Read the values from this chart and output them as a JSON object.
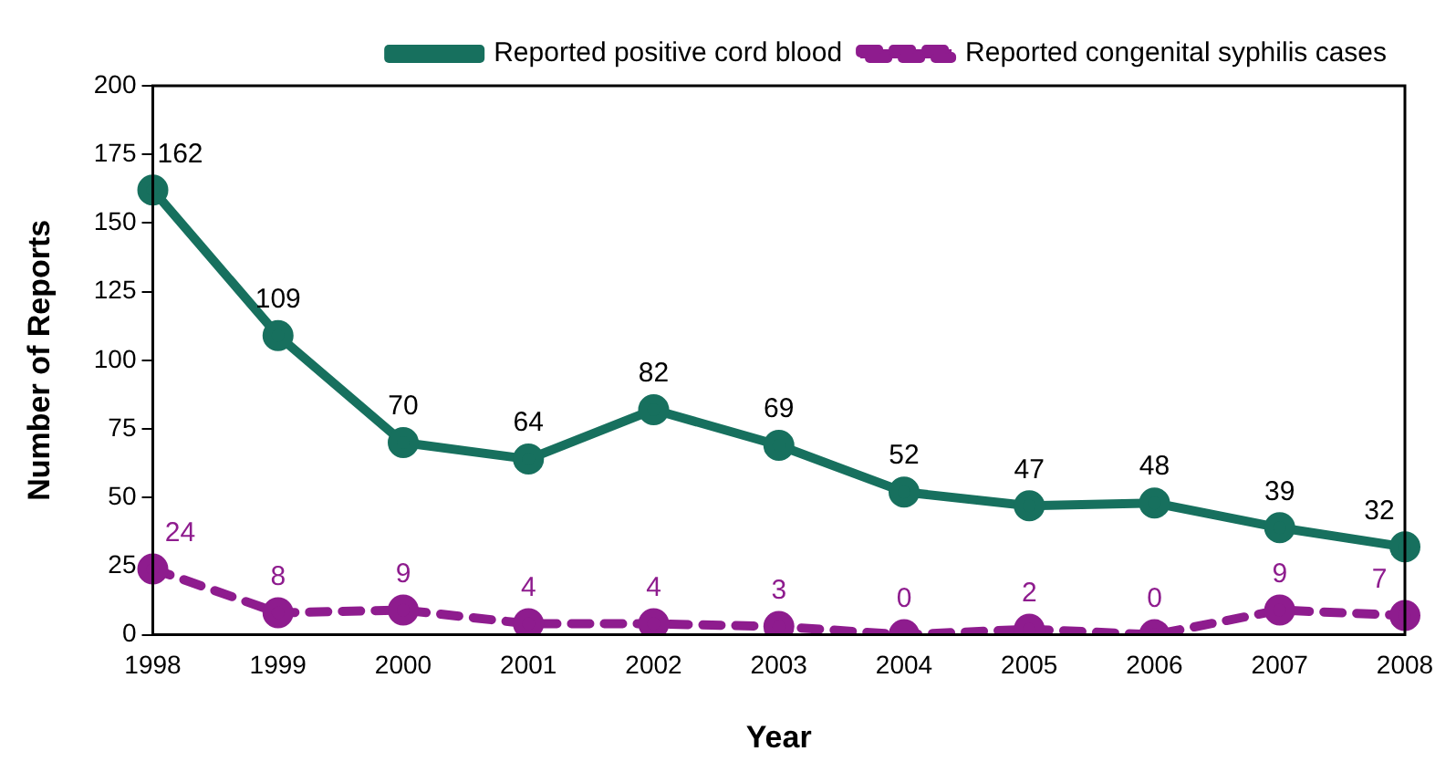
{
  "chart_data": {
    "type": "line",
    "xlabel": "Year",
    "ylabel": "Number of Reports",
    "categories": [
      "1998",
      "1999",
      "2000",
      "2001",
      "2002",
      "2003",
      "2004",
      "2005",
      "2006",
      "2007",
      "2008"
    ],
    "series": [
      {
        "name": "Reported positive cord blood",
        "color": "#17705e",
        "values": [
          162,
          109,
          70,
          64,
          82,
          69,
          52,
          47,
          48,
          39,
          32
        ],
        "line_style": "solid"
      },
      {
        "name": "Reported congenital syphilis cases",
        "color": "#8e1c8e",
        "values": [
          24,
          8,
          9,
          4,
          4,
          3,
          0,
          2,
          0,
          9,
          7
        ],
        "line_style": "dashed"
      }
    ],
    "ylim": [
      0,
      200
    ],
    "yticks": [
      0,
      25,
      50,
      75,
      100,
      125,
      150,
      175,
      200
    ],
    "grid": false,
    "legend": "top right",
    "marker": "circle",
    "data_labels": true
  }
}
